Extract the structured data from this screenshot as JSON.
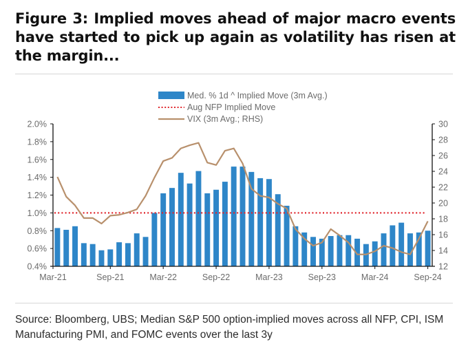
{
  "figure": {
    "title": "Figure 3: Implied moves ahead of major macro events have started to pick up again as volatility has risen at the margin...",
    "source": "Source: Bloomberg, UBS; Median S&P 500 option-implied moves across all NFP, CPI, ISM Manufacturing PMI, and FOMC events over the last 3y"
  },
  "chart_data": {
    "type": "bar",
    "title": "Figure 3: Implied moves ahead of major macro events have started to pick up again as volatility has risen at the margin...",
    "xlabel": "",
    "ylabel": "",
    "ylabel_right": "",
    "x_start": "Mar-21",
    "x_end": "Sep-24",
    "frequency": "monthly",
    "x_ticks": [
      "Mar-21",
      "Sep-21",
      "Mar-22",
      "Sep-22",
      "Mar-23",
      "Sep-23",
      "Mar-24",
      "Sep-24"
    ],
    "x_tick_indices": [
      0,
      6,
      12,
      18,
      24,
      30,
      36,
      42
    ],
    "ylim": [
      0.4,
      2.0
    ],
    "y_ticks": [
      "0.4%",
      "0.6%",
      "0.8%",
      "1.0%",
      "1.2%",
      "1.4%",
      "1.6%",
      "1.8%",
      "2.0%"
    ],
    "y_tick_values": [
      0.4,
      0.6,
      0.8,
      1.0,
      1.2,
      1.4,
      1.6,
      1.8,
      2.0
    ],
    "ylim_right": [
      12,
      30
    ],
    "y_ticks_right": [
      "12",
      "14",
      "16",
      "18",
      "20",
      "22",
      "24",
      "26",
      "28",
      "30"
    ],
    "y_tick_values_right": [
      12,
      14,
      16,
      18,
      20,
      22,
      24,
      26,
      28,
      30
    ],
    "grid": false,
    "legend_position": "top-center",
    "series": [
      {
        "name": "Med. % 1d ^ Implied Move (3m Avg.)",
        "kind": "bar",
        "axis": "left",
        "color": "#2e86c8",
        "values": [
          0.83,
          0.81,
          0.85,
          0.66,
          0.65,
          0.58,
          0.59,
          0.67,
          0.66,
          0.77,
          0.73,
          1.0,
          1.22,
          1.28,
          1.45,
          1.33,
          1.47,
          1.22,
          1.26,
          1.35,
          1.52,
          1.52,
          1.46,
          1.39,
          1.38,
          1.21,
          1.08,
          0.85,
          0.78,
          0.73,
          0.71,
          0.74,
          0.75,
          0.75,
          0.71,
          0.65,
          0.68,
          0.77,
          0.86,
          0.89,
          0.77,
          0.78,
          0.8
        ]
      },
      {
        "name": "Aug NFP Implied Move",
        "kind": "hline",
        "axis": "left",
        "color": "#e0242b",
        "value": 1.0
      },
      {
        "name": "VIX (3m Avg.; RHS)",
        "kind": "line",
        "axis": "right",
        "color": "#b8906c",
        "values": [
          23.3,
          20.8,
          19.7,
          18.1,
          18.1,
          17.4,
          18.4,
          18.5,
          18.8,
          19.2,
          20.9,
          23.2,
          25.3,
          25.7,
          26.9,
          27.3,
          27.6,
          25.1,
          24.8,
          26.6,
          26.9,
          25.0,
          21.8,
          20.9,
          20.7,
          19.9,
          19.3,
          16.7,
          15.5,
          14.6,
          15.0,
          16.7,
          15.9,
          15.0,
          13.5,
          13.5,
          13.9,
          14.6,
          14.3,
          13.8,
          13.5,
          15.5,
          17.7
        ]
      }
    ]
  }
}
